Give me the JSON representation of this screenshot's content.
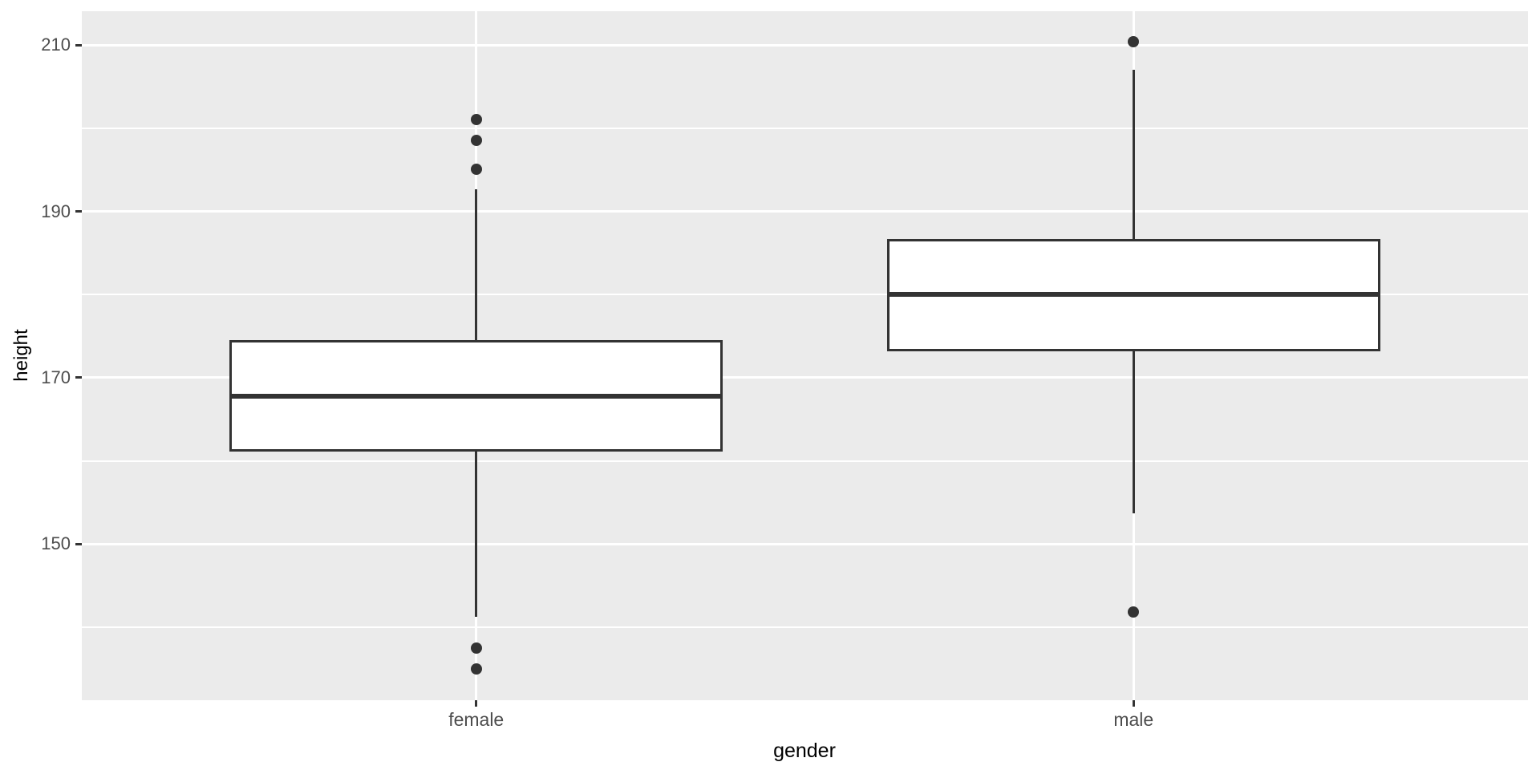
{
  "figure": {
    "background": "#FFFFFF",
    "panel_background": "#EBEBEB",
    "grid_color": "#FFFFFF",
    "box_border_color": "#333333",
    "box_fill_color": "#FFFFFF",
    "median_color": "#333333",
    "outlier_color": "#333333",
    "tick_mark_color": "#333333",
    "tick_label_color": "#4D4D4D",
    "axis_title_color": "#000000"
  },
  "chart_data": {
    "type": "boxplot",
    "title": "",
    "xlabel": "gender",
    "ylabel": "height",
    "categories": [
      "female",
      "male"
    ],
    "y_major_ticks": [
      150,
      170,
      190,
      210
    ],
    "y_minor_gridlines": [
      140,
      160,
      180,
      200
    ],
    "ylim": [
      131.2,
      214.1
    ],
    "grid": true,
    "legend_position": "none",
    "series": [
      {
        "name": "female",
        "whisker_low": 141.2,
        "q1": 161.1,
        "median": 167.8,
        "q3": 174.5,
        "whisker_high": 192.7,
        "outliers": [
          201.1,
          198.6,
          195.1,
          137.5,
          135.0
        ]
      },
      {
        "name": "male",
        "whisker_low": 153.7,
        "q1": 173.2,
        "median": 180.0,
        "q3": 186.7,
        "whisker_high": 207.1,
        "outliers": [
          210.4,
          141.8
        ]
      }
    ]
  }
}
